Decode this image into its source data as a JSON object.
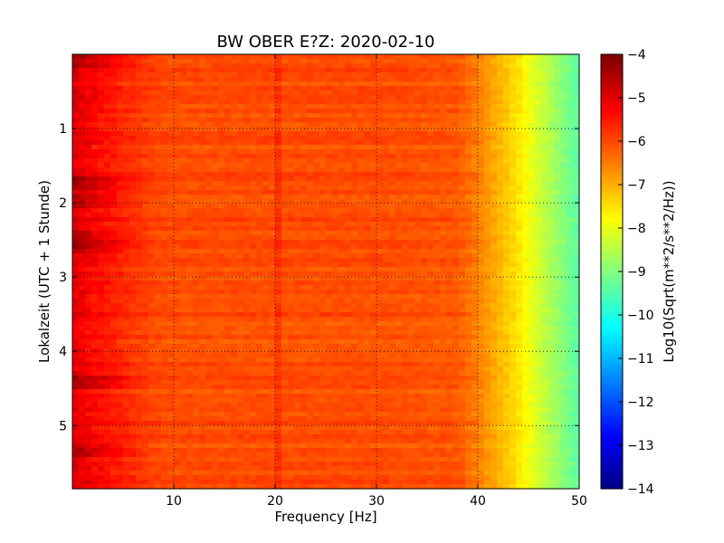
{
  "chart_data": {
    "type": "heatmap",
    "title": "BW OBER E?Z: 2020-02-10",
    "xlabel": "Frequency [Hz]",
    "ylabel": "Lokalzeit (UTC + 1 Stunde)",
    "colorbar_label": "Log10(Sqrt(m**2/s**2/Hz))",
    "xlim": [
      0,
      50
    ],
    "ylim": [
      0,
      5.85
    ],
    "y_inverted": true,
    "xticks": [
      10,
      20,
      30,
      40,
      50
    ],
    "yticks": [
      1,
      2,
      3,
      4,
      5
    ],
    "colorbar_range": [
      -14,
      -4
    ],
    "colorbar_ticks": [
      -4,
      -5,
      -6,
      -7,
      -8,
      -9,
      -10,
      -11,
      -12,
      -13,
      -14
    ],
    "colormap": "jet",
    "grid": true,
    "frequency_profile_hz": [
      0,
      2,
      5,
      10,
      20,
      30,
      38,
      40,
      42,
      44,
      46,
      48,
      50
    ],
    "frequency_profile_log10": [
      -5.4,
      -5.6,
      -5.8,
      -6.0,
      -6.0,
      -6.0,
      -6.1,
      -6.5,
      -7.0,
      -7.5,
      -8.2,
      -8.8,
      -9.4
    ],
    "strong_low_freq_times_h": [
      0.05,
      1.7,
      1.95,
      2.45,
      2.55,
      4.4,
      5.3
    ]
  },
  "colors": {
    "frame": "#000000",
    "grid": "#000000"
  }
}
